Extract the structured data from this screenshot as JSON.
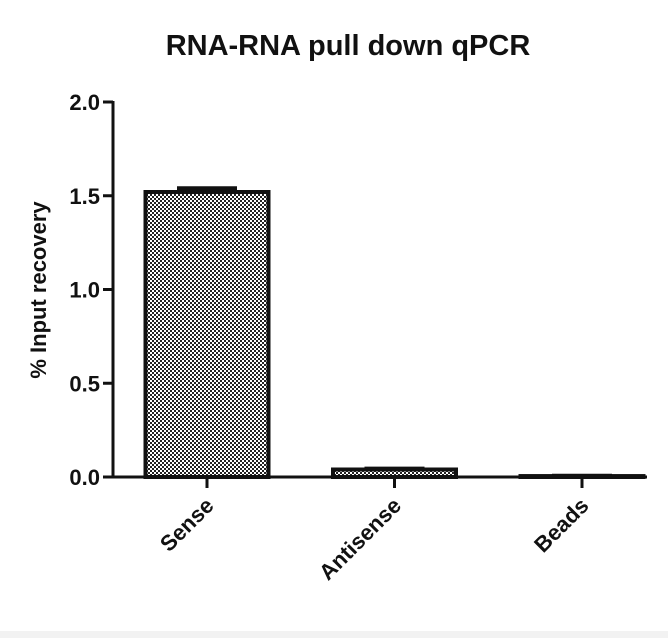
{
  "chart_data": {
    "type": "bar",
    "title": "RNA-RNA pull down qPCR",
    "y_label": "% Input recovery",
    "categories": [
      "Sense",
      "Antisense",
      "Beads"
    ],
    "values": [
      1.52,
      0.04,
      0.005
    ],
    "errors": [
      0.02,
      0.005,
      0.002
    ],
    "color": "#111111",
    "ylim": [
      0,
      2
    ],
    "yticks": [
      {
        "value": 0,
        "label": "0.0"
      },
      0.5,
      {
        "value": 1,
        "label": "1.0"
      },
      1.5,
      {
        "value": 2,
        "label": "2.0"
      }
    ],
    "grid": false
  }
}
